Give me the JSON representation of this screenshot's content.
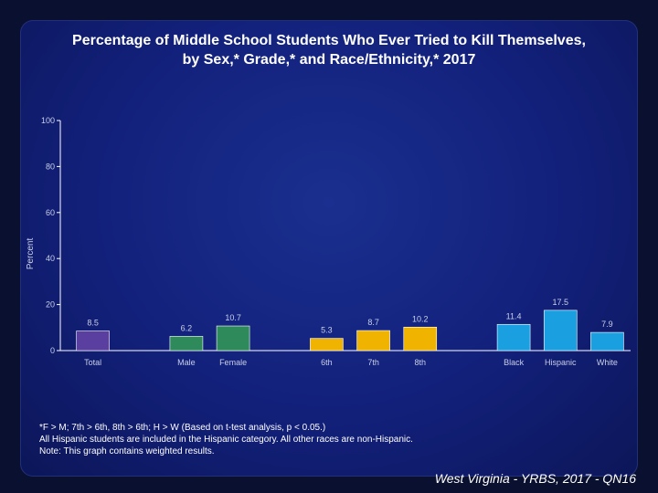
{
  "title_line1": "Percentage of Middle School Students Who Ever Tried to Kill Themselves,",
  "title_line2": "by Sex,* Grade,* and Race/Ethnicity,* 2017",
  "footnote_line1": "*F > M; 7th > 6th, 8th > 6th; H > W (Based on t-test analysis, p < 0.05.)",
  "footnote_line2": "All Hispanic students are included in the Hispanic category.  All other races are non-Hispanic.",
  "footnote_line3": "Note: This graph contains weighted results.",
  "source": "West Virginia - YRBS, 2017 - QN16",
  "chart_data": {
    "type": "bar",
    "ylabel": "Percent",
    "ylim": [
      0,
      100
    ],
    "yticks": [
      0,
      20,
      40,
      60,
      80,
      100
    ],
    "categories": [
      "Total",
      "Male",
      "Female",
      "6th",
      "7th",
      "8th",
      "Black",
      "Hispanic",
      "White"
    ],
    "values": [
      8.5,
      6.2,
      10.7,
      5.3,
      8.7,
      10.2,
      11.4,
      17.5,
      7.9
    ],
    "value_labels": [
      "8.5",
      "6.2",
      "10.7",
      "5.3",
      "8.7",
      "10.2",
      "11.4",
      "17.5",
      "7.9"
    ],
    "groups": [
      {
        "name": "Total",
        "color": "#5a3fa0"
      },
      {
        "name": "Sex",
        "color": "#2e8a5a"
      },
      {
        "name": "Grade",
        "color": "#f0b400"
      },
      {
        "name": "Race/Ethnicity",
        "color": "#1aa0e0"
      }
    ],
    "bar_groups": [
      0,
      1,
      1,
      2,
      2,
      2,
      3,
      3,
      3
    ],
    "grid": false
  }
}
